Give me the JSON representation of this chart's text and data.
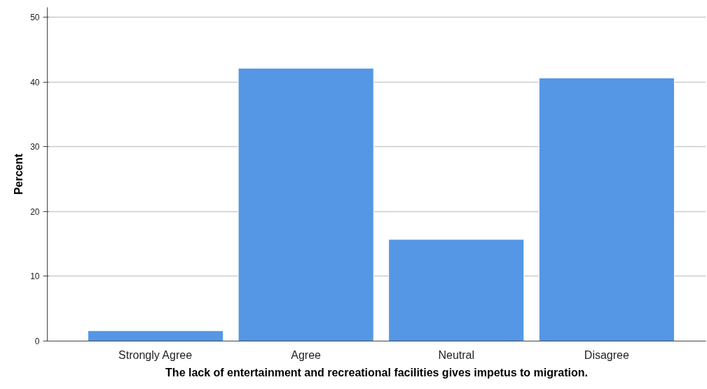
{
  "chart_data": {
    "type": "bar",
    "xlabel": "The lack of entertainment and recreational facilities gives impetus to migration.",
    "ylabel": "Percent",
    "categories": [
      "Strongly Agree",
      "Agree",
      "Neutral",
      "Disagree"
    ],
    "values": [
      1.6,
      42.1,
      15.7,
      40.6
    ],
    "color": "#5597e4",
    "ylim": [
      0,
      51.5
    ],
    "yticks": [
      0,
      10,
      20,
      30,
      40,
      50
    ],
    "grid": "y"
  }
}
